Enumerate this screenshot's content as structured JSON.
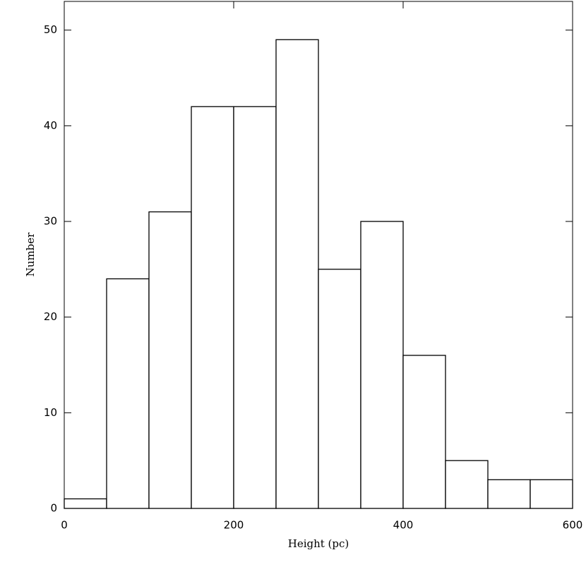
{
  "chart_data": {
    "type": "histogram",
    "x_label": "Height (pc)",
    "y_label": "Number",
    "bins": [
      0,
      50,
      100,
      150,
      200,
      250,
      300,
      350,
      400,
      450,
      500,
      550,
      600
    ],
    "values": [
      1,
      24,
      31,
      42,
      42,
      49,
      25,
      30,
      16,
      5,
      3,
      3
    ],
    "color": "#ffffff",
    "edge_color": "#000000",
    "xlim": [
      0,
      600
    ],
    "xticks": [
      0,
      200,
      400,
      600
    ],
    "ylim": [
      0,
      53
    ],
    "yticks": [
      0,
      10,
      20,
      30,
      40,
      50
    ]
  }
}
